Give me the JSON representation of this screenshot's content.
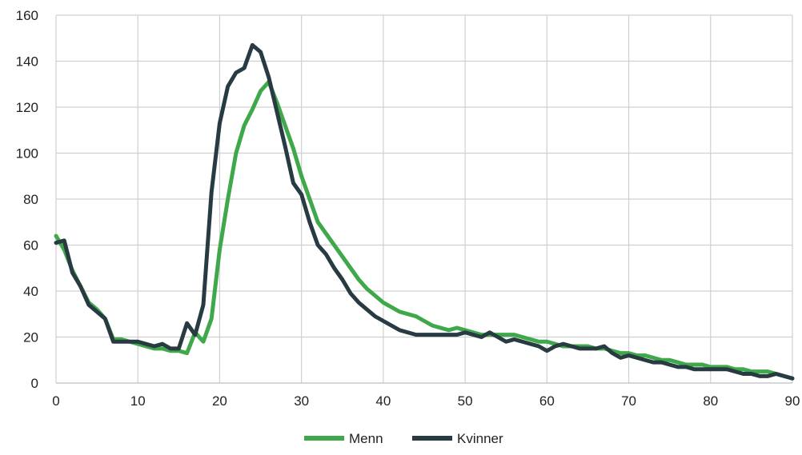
{
  "chart_data": {
    "type": "line",
    "title": "",
    "xlabel": "",
    "ylabel": "",
    "xlim": [
      0,
      90
    ],
    "ylim": [
      0,
      160
    ],
    "xticks": [
      0,
      10,
      20,
      30,
      40,
      50,
      60,
      70,
      80,
      90
    ],
    "yticks": [
      0,
      20,
      40,
      60,
      80,
      100,
      120,
      140,
      160
    ],
    "grid": true,
    "legend_position": "bottom",
    "series": [
      {
        "name": "Menn",
        "color": "#3ea84a",
        "x": [
          0,
          1,
          2,
          3,
          4,
          5,
          6,
          7,
          8,
          9,
          10,
          11,
          12,
          13,
          14,
          15,
          16,
          17,
          18,
          19,
          20,
          21,
          22,
          23,
          24,
          25,
          26,
          27,
          28,
          29,
          30,
          31,
          32,
          33,
          34,
          35,
          36,
          37,
          38,
          39,
          40,
          41,
          42,
          43,
          44,
          45,
          46,
          47,
          48,
          49,
          50,
          51,
          52,
          53,
          54,
          55,
          56,
          57,
          58,
          59,
          60,
          61,
          62,
          63,
          64,
          65,
          66,
          67,
          68,
          69,
          70,
          71,
          72,
          73,
          74,
          75,
          76,
          77,
          78,
          79,
          80,
          81,
          82,
          83,
          84,
          85,
          86,
          87,
          88,
          89,
          90
        ],
        "values": [
          64,
          58,
          49,
          42,
          35,
          32,
          28,
          19,
          19,
          18,
          17,
          16,
          15,
          15,
          14,
          14,
          13,
          22,
          18,
          28,
          58,
          80,
          100,
          112,
          119,
          127,
          131,
          122,
          112,
          102,
          90,
          80,
          70,
          65,
          60,
          55,
          50,
          45,
          41,
          38,
          35,
          33,
          31,
          30,
          29,
          27,
          25,
          24,
          23,
          24,
          23,
          22,
          21,
          21,
          21,
          21,
          21,
          20,
          19,
          18,
          18,
          17,
          16,
          16,
          16,
          16,
          15,
          15,
          14,
          13,
          13,
          12,
          12,
          11,
          10,
          10,
          9,
          8,
          8,
          8,
          7,
          7,
          7,
          6,
          6,
          5,
          5,
          5,
          4,
          3,
          2
        ]
      },
      {
        "name": "Kvinner",
        "color": "#283a42",
        "x": [
          0,
          1,
          2,
          3,
          4,
          5,
          6,
          7,
          8,
          9,
          10,
          11,
          12,
          13,
          14,
          15,
          16,
          17,
          18,
          19,
          20,
          21,
          22,
          23,
          24,
          25,
          26,
          27,
          28,
          29,
          30,
          31,
          32,
          33,
          34,
          35,
          36,
          37,
          38,
          39,
          40,
          41,
          42,
          43,
          44,
          45,
          46,
          47,
          48,
          49,
          50,
          51,
          52,
          53,
          54,
          55,
          56,
          57,
          58,
          59,
          60,
          61,
          62,
          63,
          64,
          65,
          66,
          67,
          68,
          69,
          70,
          71,
          72,
          73,
          74,
          75,
          76,
          77,
          78,
          79,
          80,
          81,
          82,
          83,
          84,
          85,
          86,
          87,
          88,
          89,
          90
        ],
        "values": [
          61,
          62,
          48,
          42,
          34,
          31,
          28,
          18,
          18,
          18,
          18,
          17,
          16,
          17,
          15,
          15,
          26,
          21,
          34,
          83,
          113,
          129,
          135,
          137,
          147,
          144,
          133,
          118,
          103,
          87,
          82,
          70,
          60,
          56,
          50,
          45,
          39,
          35,
          32,
          29,
          27,
          25,
          23,
          22,
          21,
          21,
          21,
          21,
          21,
          21,
          22,
          21,
          20,
          22,
          20,
          18,
          19,
          18,
          17,
          16,
          14,
          16,
          17,
          16,
          15,
          15,
          15,
          16,
          13,
          11,
          12,
          11,
          10,
          9,
          9,
          8,
          7,
          7,
          6,
          6,
          6,
          6,
          6,
          5,
          4,
          4,
          3,
          3,
          4,
          3,
          2
        ]
      }
    ]
  }
}
